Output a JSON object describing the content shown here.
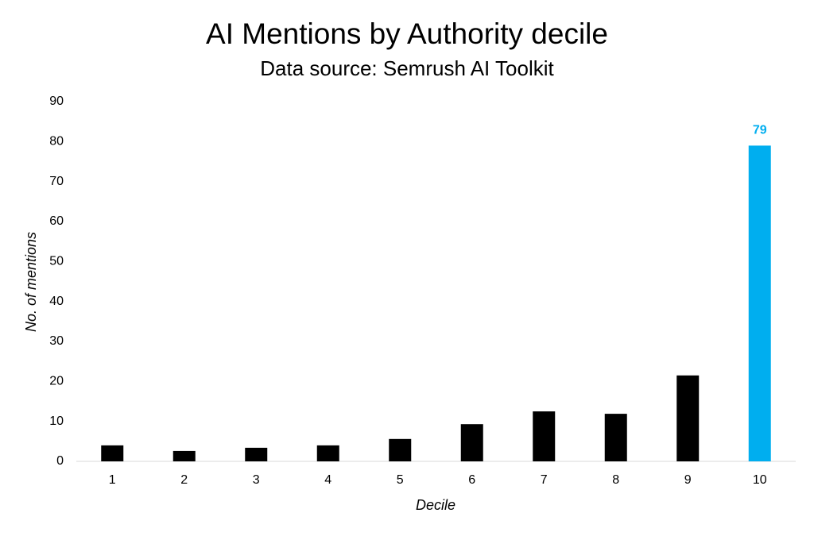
{
  "chart_data": {
    "type": "bar",
    "title": "AI Mentions by Authority decile",
    "subtitle": "Data source: Semrush AI Toolkit",
    "x_label": "Decile",
    "y_label": "No. of mentions",
    "categories": [
      "1",
      "2",
      "3",
      "4",
      "5",
      "6",
      "7",
      "8",
      "9",
      "10"
    ],
    "values": [
      4.0,
      2.6,
      3.4,
      4.0,
      5.6,
      9.3,
      12.5,
      11.9,
      21.5,
      79
    ],
    "colors": [
      "#000000",
      "#000000",
      "#000000",
      "#000000",
      "#000000",
      "#000000",
      "#000000",
      "#000000",
      "#000000",
      "#00aeef"
    ],
    "show_value_label": [
      false,
      false,
      false,
      false,
      false,
      false,
      false,
      false,
      false,
      true
    ],
    "ylim": [
      0,
      90
    ],
    "yticks": [
      0,
      10,
      20,
      30,
      40,
      50,
      60,
      70,
      80,
      90
    ],
    "grid": false
  }
}
